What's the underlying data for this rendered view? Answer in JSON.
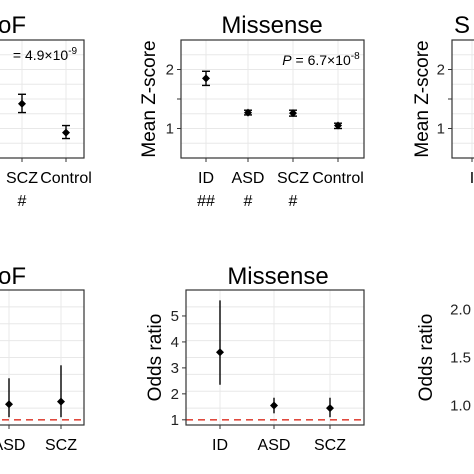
{
  "colors": {
    "panel_bg": "#ffffff",
    "grid": "#e8e8e8",
    "border": "#333333",
    "point": "#000000",
    "reference_line": "#e04a3f"
  },
  "chart_data": [
    {
      "type": "scatter",
      "title": "oF",
      "annotation_prefix": "",
      "annotation_p": "= 4.9×10",
      "annotation_exp": "-9",
      "ylabel": "",
      "categories": [
        "SCZ",
        "Control"
      ],
      "x_sublabels": [
        "#",
        ""
      ],
      "ylim": [
        0.5,
        2.5
      ],
      "yticks": [],
      "values": [
        1.42,
        0.93
      ],
      "errors_low": [
        1.27,
        0.83
      ],
      "errors_high": [
        1.58,
        1.05
      ],
      "grid": true
    },
    {
      "type": "scatter",
      "title": "Missense",
      "annotation_prefix": "P",
      "annotation_p": " = 6.7×10",
      "annotation_exp": "-8",
      "ylabel": "Mean Z-score",
      "categories": [
        "ID",
        "ASD",
        "SCZ",
        "Control"
      ],
      "x_sublabels": [
        "##",
        "#",
        "#",
        ""
      ],
      "ylim": [
        0.5,
        2.5
      ],
      "yticks": [
        1,
        1.5,
        2
      ],
      "ytick_labels": [
        "1",
        "",
        "2"
      ],
      "values": [
        1.85,
        1.27,
        1.26,
        1.05
      ],
      "errors_low": [
        1.73,
        1.23,
        1.21,
        1.0
      ],
      "errors_high": [
        1.97,
        1.31,
        1.31,
        1.09
      ],
      "grid": true
    },
    {
      "type": "scatter",
      "title": "S",
      "ylabel": "Mean Z-score",
      "categories": [
        "I"
      ],
      "ylim": [
        0.5,
        2.5
      ],
      "yticks": [
        1,
        1.5,
        2
      ],
      "ytick_labels": [
        "1",
        "",
        "2"
      ],
      "grid": true
    },
    {
      "type": "scatter",
      "title": "oF",
      "ylabel": "",
      "categories": [
        "ASD",
        "SCZ"
      ],
      "ylim": [
        0.8,
        6
      ],
      "yticks": [],
      "values": [
        1.6,
        1.7
      ],
      "errors_low": [
        1.1,
        1.1
      ],
      "errors_high": [
        2.6,
        3.1
      ],
      "reference_line": 1,
      "grid": true
    },
    {
      "type": "scatter",
      "title": "Missense",
      "ylabel": "Odds ratio",
      "categories": [
        "ID",
        "ASD",
        "SCZ"
      ],
      "ylim": [
        0.8,
        6
      ],
      "yticks": [
        1,
        2,
        3,
        4,
        5
      ],
      "ytick_labels": [
        "1",
        "2",
        "3",
        "4",
        "5"
      ],
      "values": [
        3.6,
        1.55,
        1.45
      ],
      "errors_low": [
        2.35,
        1.25,
        1.1
      ],
      "errors_high": [
        5.6,
        1.85,
        1.85
      ],
      "reference_line": 1,
      "grid": true
    },
    {
      "type": "scatter",
      "title": "",
      "ylabel": "Odds ratio",
      "categories": [],
      "ylim": [
        0.8,
        2.2
      ],
      "yticks": [
        1,
        1.5,
        2
      ],
      "ytick_labels": [
        "1.0",
        "1.5",
        "2.0"
      ],
      "reference_line": 1,
      "grid": true
    }
  ]
}
